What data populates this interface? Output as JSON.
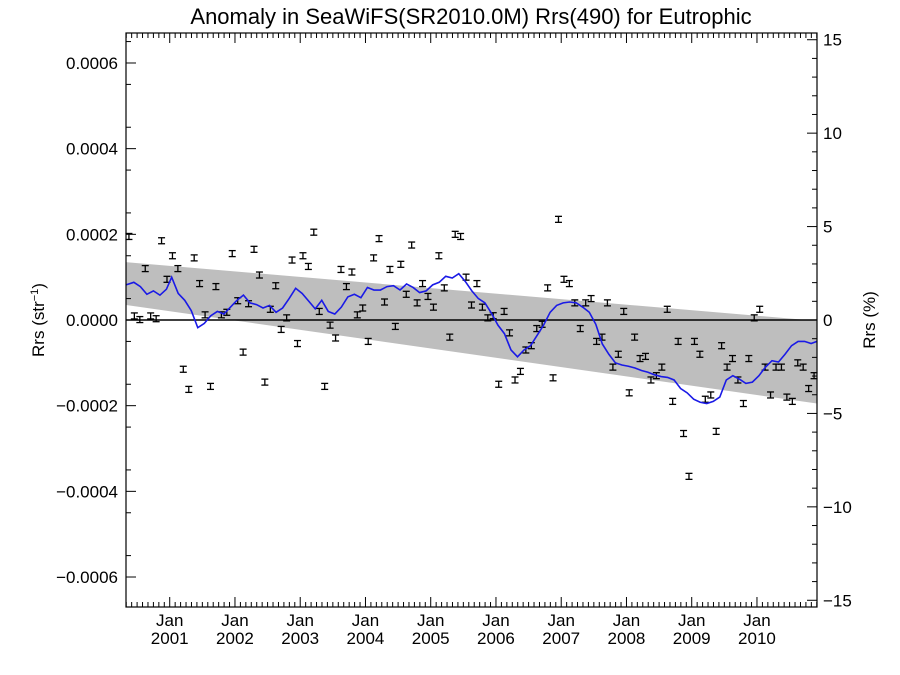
{
  "chart_data": {
    "type": "scatter",
    "title": "Anomaly in SeaWiFS(SR2010.0M) Rrs(490) for Eutrophic",
    "ylabel_left": "Rrs (str⁻¹)",
    "ylabel_right": "Rrs (%)",
    "xlabel": "",
    "xlim": [
      2000.33,
      2010.92
    ],
    "ylim_left": [
      -0.00067,
      0.00067
    ],
    "ylim_right": [
      -15.36,
      15.36
    ],
    "grid": false,
    "x_ticks": [
      {
        "value": 2001.0,
        "line1": "Jan",
        "line2": "2001"
      },
      {
        "value": 2002.0,
        "line1": "Jan",
        "line2": "2002"
      },
      {
        "value": 2003.0,
        "line1": "Jan",
        "line2": "2003"
      },
      {
        "value": 2004.0,
        "line1": "Jan",
        "line2": "2004"
      },
      {
        "value": 2005.0,
        "line1": "Jan",
        "line2": "2005"
      },
      {
        "value": 2006.0,
        "line1": "Jan",
        "line2": "2006"
      },
      {
        "value": 2007.0,
        "line1": "Jan",
        "line2": "2007"
      },
      {
        "value": 2008.0,
        "line1": "Jan",
        "line2": "2008"
      },
      {
        "value": 2009.0,
        "line1": "Jan",
        "line2": "2009"
      },
      {
        "value": 2010.0,
        "line1": "Jan",
        "line2": "2010"
      }
    ],
    "y_ticks_left": [
      {
        "value": 0.0006,
        "label": "0.0006"
      },
      {
        "value": 0.0004,
        "label": "0.0004"
      },
      {
        "value": 0.0002,
        "label": "0.0002"
      },
      {
        "value": 0.0,
        "label": "0.0000"
      },
      {
        "value": -0.0002,
        "label": "−0.0002"
      },
      {
        "value": -0.0004,
        "label": "−0.0004"
      },
      {
        "value": -0.0006,
        "label": "−0.0006"
      }
    ],
    "y_ticks_right": [
      {
        "value": 15,
        "label": "15"
      },
      {
        "value": 10,
        "label": "10"
      },
      {
        "value": 5,
        "label": "5"
      },
      {
        "value": 0,
        "label": "0"
      },
      {
        "value": -5,
        "label": "−5"
      },
      {
        "value": -10,
        "label": "−10"
      },
      {
        "value": -15,
        "label": "−15"
      }
    ],
    "error_half_width": 7e-06,
    "trend_band": {
      "x": [
        2000.33,
        2010.92
      ],
      "upper": [
        0.000135,
        -2e-06
      ],
      "lower": [
        3.5e-05,
        -0.000195
      ],
      "color": "#bebebe"
    },
    "zero_line": {
      "y": 0.0,
      "color": "#000000"
    },
    "series": [
      {
        "kind": "monthly_points",
        "color": "#000000",
        "x": [
          2000.375,
          2000.458,
          2000.542,
          2000.625,
          2000.708,
          2000.792,
          2000.875,
          2000.958,
          2001.042,
          2001.125,
          2001.208,
          2001.292,
          2001.375,
          2001.458,
          2001.542,
          2001.625,
          2001.708,
          2001.792,
          2001.875,
          2001.958,
          2002.042,
          2002.125,
          2002.208,
          2002.292,
          2002.375,
          2002.458,
          2002.542,
          2002.625,
          2002.708,
          2002.792,
          2002.875,
          2002.958,
          2003.042,
          2003.125,
          2003.208,
          2003.292,
          2003.375,
          2003.458,
          2003.542,
          2003.625,
          2003.708,
          2003.792,
          2003.875,
          2003.958,
          2004.042,
          2004.125,
          2004.208,
          2004.292,
          2004.375,
          2004.458,
          2004.542,
          2004.625,
          2004.708,
          2004.792,
          2004.875,
          2004.958,
          2005.042,
          2005.125,
          2005.208,
          2005.292,
          2005.375,
          2005.458,
          2005.542,
          2005.625,
          2005.708,
          2005.792,
          2005.875,
          2005.958,
          2006.042,
          2006.125,
          2006.208,
          2006.292,
          2006.375,
          2006.458,
          2006.542,
          2006.625,
          2006.708,
          2006.792,
          2006.875,
          2006.958,
          2007.042,
          2007.125,
          2007.208,
          2007.292,
          2007.375,
          2007.458,
          2007.542,
          2007.625,
          2007.708,
          2007.792,
          2007.875,
          2007.958,
          2008.042,
          2008.125,
          2008.208,
          2008.292,
          2008.375,
          2008.458,
          2008.542,
          2008.625,
          2008.708,
          2008.792,
          2008.875,
          2008.958,
          2009.042,
          2009.125,
          2009.208,
          2009.292,
          2009.375,
          2009.458,
          2009.542,
          2009.625,
          2009.708,
          2009.792,
          2009.875,
          2009.958,
          2010.042,
          2010.125,
          2010.208,
          2010.292,
          2010.375,
          2010.458,
          2010.542,
          2010.625,
          2010.708,
          2010.792,
          2010.875
        ],
        "y": [
          0.000195,
          9.5e-06,
          1e-06,
          0.00012,
          9.5e-06,
          3e-06,
          0.000185,
          9.5e-05,
          0.00015,
          0.00012,
          -0.000115,
          -0.000162,
          0.000145,
          8.5e-05,
          1.2e-05,
          -0.000155,
          7.8e-05,
          1.2e-05,
          1.8e-05,
          0.000155,
          4.5e-05,
          -7.5e-05,
          3.8e-05,
          0.000165,
          0.000105,
          -0.000145,
          2.5e-05,
          8e-05,
          -2.2e-05,
          5e-06,
          0.00014,
          -5.5e-05,
          0.00015,
          0.000125,
          0.000205,
          2e-05,
          -0.000155,
          -1.2e-05,
          -4.2e-05,
          0.000118,
          7.8e-05,
          0.000112,
          1.2e-05,
          2.8e-05,
          -5e-05,
          0.000145,
          0.00019,
          4.2e-05,
          0.000118,
          -1.5e-05,
          0.00013,
          6e-05,
          0.000175,
          4e-05,
          8.5e-05,
          5.5e-05,
          3e-05,
          0.00015,
          7.5e-05,
          -4e-05,
          0.0002,
          0.000195,
          0.0001,
          3.5e-05,
          8.5e-05,
          3e-05,
          5e-06,
          1e-05,
          -0.00015,
          2e-05,
          -3e-05,
          -0.00014,
          -0.00012,
          -7e-05,
          -6e-05,
          -2e-05,
          -1e-05,
          7.5e-05,
          -0.000135,
          0.000235,
          9.5e-05,
          8.5e-05,
          4e-05,
          -2e-05,
          4e-05,
          5e-05,
          -5e-05,
          -4e-05,
          4e-05,
          -0.00011,
          -8e-05,
          2e-05,
          -0.00017,
          -4e-05,
          -9e-05,
          -8.5e-05,
          -0.00014,
          -0.00013,
          -0.00011,
          2.5e-05,
          -0.00019,
          -5e-05,
          -0.000265,
          -0.000365,
          -5e-05,
          -8e-05,
          -0.000185,
          -0.000175,
          -0.00026,
          -6e-05,
          -0.00011,
          -9e-05,
          -0.00014,
          -0.000195,
          -9e-05,
          5e-06,
          2.5e-05,
          -0.00011,
          -0.000175,
          -0.00011,
          -0.00011,
          -0.00018,
          -0.00019,
          -0.0001,
          -0.00011,
          -0.00016,
          -0.00013
        ]
      },
      {
        "kind": "running_mean",
        "color": "#1a1ae6",
        "x": [
          2000.33,
          2000.45,
          2000.55,
          2000.65,
          2000.75,
          2000.85,
          2000.95,
          2001.03,
          2001.13,
          2001.23,
          2001.33,
          2001.43,
          2001.53,
          2001.63,
          2001.73,
          2001.83,
          2001.93,
          2002.03,
          2002.13,
          2002.23,
          2002.33,
          2002.43,
          2002.53,
          2002.63,
          2002.73,
          2002.83,
          2002.93,
          2003.03,
          2003.13,
          2003.23,
          2003.33,
          2003.43,
          2003.53,
          2003.63,
          2003.73,
          2003.83,
          2003.93,
          2004.03,
          2004.13,
          2004.23,
          2004.33,
          2004.43,
          2004.53,
          2004.63,
          2004.73,
          2004.83,
          2004.93,
          2005.03,
          2005.13,
          2005.23,
          2005.33,
          2005.43,
          2005.53,
          2005.63,
          2005.73,
          2005.83,
          2005.93,
          2006.03,
          2006.13,
          2006.23,
          2006.33,
          2006.43,
          2006.53,
          2006.63,
          2006.73,
          2006.83,
          2006.93,
          2007.03,
          2007.13,
          2007.23,
          2007.33,
          2007.43,
          2007.53,
          2007.63,
          2007.73,
          2007.83,
          2007.93,
          2008.03,
          2008.13,
          2008.23,
          2008.33,
          2008.43,
          2008.53,
          2008.63,
          2008.73,
          2008.83,
          2008.93,
          2009.03,
          2009.13,
          2009.23,
          2009.33,
          2009.43,
          2009.53,
          2009.63,
          2009.73,
          2009.83,
          2009.93,
          2010.03,
          2010.13,
          2010.23,
          2010.33,
          2010.43,
          2010.53,
          2010.63,
          2010.73,
          2010.83,
          2010.92
        ],
        "y": [
          8.2e-05,
          8.8e-05,
          7.8e-05,
          6e-05,
          6.8e-05,
          5.8e-05,
          7.2e-05,
          0.0001,
          6.2e-05,
          4.6e-05,
          2.2e-05,
          -1.8e-05,
          -8e-06,
          1e-05,
          2e-05,
          1.4e-05,
          3e-05,
          4.6e-05,
          5.8e-05,
          4e-05,
          3.6e-05,
          2.8e-05,
          3.4e-05,
          1.8e-05,
          2.8e-05,
          5e-05,
          7.4e-05,
          6.2e-05,
          4.4e-05,
          2.6e-05,
          4.6e-05,
          2e-05,
          1.4e-05,
          3e-05,
          5.4e-05,
          6e-05,
          5.2e-05,
          7.6e-05,
          7e-05,
          7e-05,
          7.8e-05,
          8e-05,
          7e-05,
          8.4e-05,
          7.6e-05,
          6.4e-05,
          6.8e-05,
          8.2e-05,
          8.8e-05,
          0.000102,
          9.8e-05,
          0.000108,
          9e-05,
          6.8e-05,
          5e-05,
          4e-05,
          1.6e-05,
          -1.2e-05,
          -3.2e-05,
          -7e-05,
          -8.6e-05,
          -7e-05,
          -6e-05,
          -3.6e-05,
          -1.2e-05,
          1.8e-05,
          3.4e-05,
          4e-05,
          4.2e-05,
          4e-05,
          3e-05,
          1.8e-05,
          -1e-05,
          -5.6e-05,
          -8e-05,
          -0.0001,
          -0.000105,
          -0.000108,
          -0.000112,
          -0.000118,
          -0.000122,
          -0.000128,
          -0.000132,
          -0.000134,
          -0.00014,
          -0.00016,
          -0.00017,
          -0.000185,
          -0.000192,
          -0.000195,
          -0.00019,
          -0.00018,
          -0.00014,
          -0.00013,
          -0.000138,
          -0.000148,
          -0.000145,
          -0.00013,
          -0.00011,
          -9.5e-05,
          -9.8e-05,
          -8e-05,
          -6e-05,
          -5e-05,
          -5e-05,
          -5.5e-05,
          -5e-05
        ]
      }
    ]
  }
}
